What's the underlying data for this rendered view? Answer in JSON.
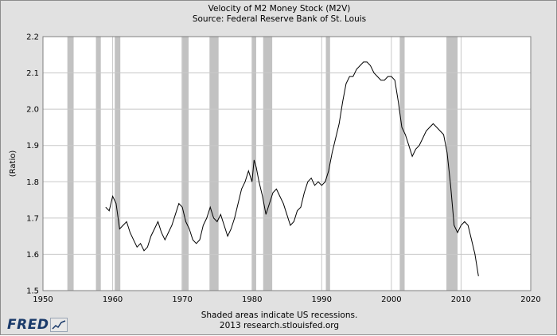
{
  "chart_data": {
    "type": "line",
    "title": "Velocity of M2 Money Stock (M2V)",
    "subtitle": "Source: Federal Reserve Bank of St. Louis",
    "xlabel": "",
    "ylabel": "(Ratio)",
    "xlim": [
      1950,
      2020
    ],
    "ylim": [
      1.5,
      2.2
    ],
    "x_ticks": [
      "1950",
      "1960",
      "1970",
      "1980",
      "1990",
      "2000",
      "2010",
      "2020"
    ],
    "y_ticks": [
      "1.5",
      "1.6",
      "1.7",
      "1.8",
      "1.9",
      "2.0",
      "2.1",
      "2.2"
    ],
    "grid": true,
    "recessions": [
      [
        1953.5,
        1954.4
      ],
      [
        1957.6,
        1958.3
      ],
      [
        1960.3,
        1961.1
      ],
      [
        1969.9,
        1970.9
      ],
      [
        1973.9,
        1975.2
      ],
      [
        1980.0,
        1980.6
      ],
      [
        1981.6,
        1982.9
      ],
      [
        1990.6,
        1991.2
      ],
      [
        2001.2,
        2001.9
      ],
      [
        2007.9,
        2009.5
      ]
    ],
    "series": [
      {
        "color": "#000000",
        "x": [
          1959.0,
          1959.5,
          1960.0,
          1960.5,
          1961.0,
          1961.5,
          1962.0,
          1962.5,
          1963.0,
          1963.5,
          1964.0,
          1964.5,
          1965.0,
          1965.5,
          1966.0,
          1966.5,
          1967.0,
          1967.5,
          1968.0,
          1968.5,
          1969.0,
          1969.5,
          1970.0,
          1970.5,
          1971.0,
          1971.5,
          1972.0,
          1972.5,
          1973.0,
          1973.5,
          1974.0,
          1974.5,
          1975.0,
          1975.5,
          1976.0,
          1976.5,
          1977.0,
          1977.5,
          1978.0,
          1978.5,
          1979.0,
          1979.5,
          1980.0,
          1980.3,
          1980.6,
          1981.0,
          1981.5,
          1982.0,
          1982.5,
          1983.0,
          1983.5,
          1984.0,
          1984.5,
          1985.0,
          1985.5,
          1986.0,
          1986.5,
          1987.0,
          1987.5,
          1988.0,
          1988.5,
          1989.0,
          1989.5,
          1990.0,
          1990.5,
          1991.0,
          1991.5,
          1992.0,
          1992.5,
          1993.0,
          1993.5,
          1994.0,
          1994.5,
          1995.0,
          1995.5,
          1996.0,
          1996.5,
          1997.0,
          1997.5,
          1998.0,
          1998.5,
          1999.0,
          1999.5,
          2000.0,
          2000.5,
          2001.0,
          2001.5,
          2002.0,
          2002.5,
          2003.0,
          2003.5,
          2004.0,
          2004.5,
          2005.0,
          2005.5,
          2006.0,
          2006.5,
          2007.0,
          2007.5,
          2008.0,
          2008.5,
          2009.0,
          2009.5,
          2010.0,
          2010.5,
          2011.0,
          2011.5,
          2012.0,
          2012.5
        ],
        "values": [
          1.73,
          1.72,
          1.76,
          1.74,
          1.67,
          1.68,
          1.69,
          1.66,
          1.64,
          1.62,
          1.63,
          1.61,
          1.62,
          1.65,
          1.67,
          1.69,
          1.66,
          1.64,
          1.66,
          1.68,
          1.71,
          1.74,
          1.73,
          1.69,
          1.67,
          1.64,
          1.63,
          1.64,
          1.68,
          1.7,
          1.73,
          1.7,
          1.69,
          1.71,
          1.68,
          1.65,
          1.67,
          1.7,
          1.74,
          1.78,
          1.8,
          1.83,
          1.8,
          1.86,
          1.84,
          1.8,
          1.76,
          1.71,
          1.74,
          1.77,
          1.78,
          1.76,
          1.74,
          1.71,
          1.68,
          1.69,
          1.72,
          1.73,
          1.77,
          1.8,
          1.81,
          1.79,
          1.8,
          1.79,
          1.8,
          1.83,
          1.88,
          1.92,
          1.96,
          2.02,
          2.07,
          2.09,
          2.09,
          2.11,
          2.12,
          2.13,
          2.13,
          2.12,
          2.1,
          2.09,
          2.08,
          2.08,
          2.09,
          2.09,
          2.08,
          2.02,
          1.95,
          1.93,
          1.9,
          1.87,
          1.89,
          1.9,
          1.92,
          1.94,
          1.95,
          1.96,
          1.95,
          1.94,
          1.93,
          1.88,
          1.79,
          1.68,
          1.66,
          1.68,
          1.69,
          1.68,
          1.64,
          1.6,
          1.54
        ]
      }
    ]
  },
  "footer": {
    "note": "Shaded areas indicate US recessions.",
    "credit": "2013 research.stlouisfed.org",
    "logo": "FRED"
  }
}
